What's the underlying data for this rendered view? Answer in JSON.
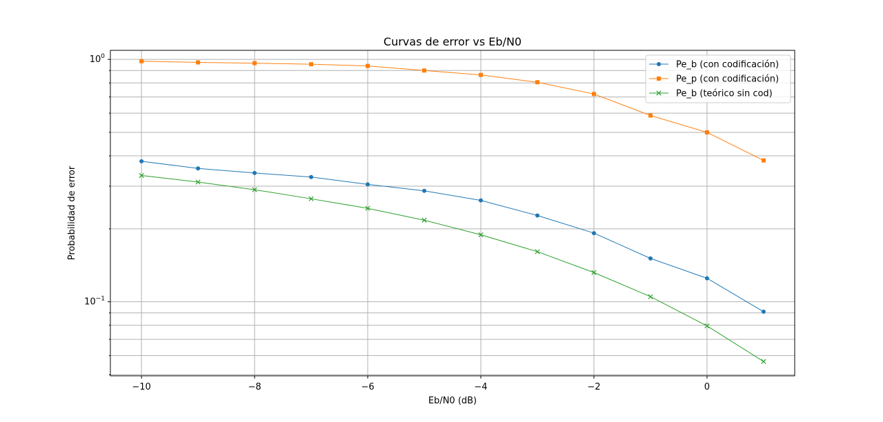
{
  "chart_data": {
    "type": "line",
    "title": "Curvas de error vs Eb/N0",
    "xlabel": "Eb/N0 (dB)",
    "ylabel": "Probabilidad de error",
    "yscale": "log",
    "xlim": [
      -10.55,
      1.55
    ],
    "ylim": [
      0.0495,
      1.09
    ],
    "grid": true,
    "legend_position": "top-right",
    "x": [
      -10,
      -9,
      -8,
      -7,
      -6,
      -5,
      -4,
      -3,
      -2,
      -1,
      0,
      1
    ],
    "x_ticks": [
      -10,
      -8,
      -6,
      -4,
      -2,
      0
    ],
    "x_tick_labels": [
      "−10",
      "−8",
      "−6",
      "−4",
      "−2",
      "0"
    ],
    "y_major_ticks": [
      {
        "value": 0.1,
        "base": "10",
        "exp": "−1"
      },
      {
        "value": 1,
        "base": "10",
        "exp": "0"
      }
    ],
    "y_minor_ticks": [
      0.05,
      0.06,
      0.07,
      0.08,
      0.09,
      0.2,
      0.3,
      0.4,
      0.5,
      0.6,
      0.7,
      0.8,
      0.9
    ],
    "series": [
      {
        "name": "Pe_b (con codificación)",
        "color": "#1f77b4",
        "marker": "circle",
        "values": [
          0.38,
          0.355,
          0.34,
          0.327,
          0.305,
          0.287,
          0.262,
          0.227,
          0.192,
          0.151,
          0.125,
          0.091
        ]
      },
      {
        "name": "Pe_p (con codificación)",
        "color": "#ff7f0e",
        "marker": "square",
        "values": [
          0.983,
          0.972,
          0.965,
          0.955,
          0.94,
          0.9,
          0.863,
          0.805,
          0.72,
          0.587,
          0.5,
          0.383
        ]
      },
      {
        "name": "Pe_b (teórico sin cod)",
        "color": "#2ca02c",
        "marker": "x",
        "values": [
          0.332,
          0.312,
          0.29,
          0.266,
          0.243,
          0.217,
          0.189,
          0.161,
          0.132,
          0.105,
          0.0795,
          0.0567
        ]
      }
    ]
  }
}
